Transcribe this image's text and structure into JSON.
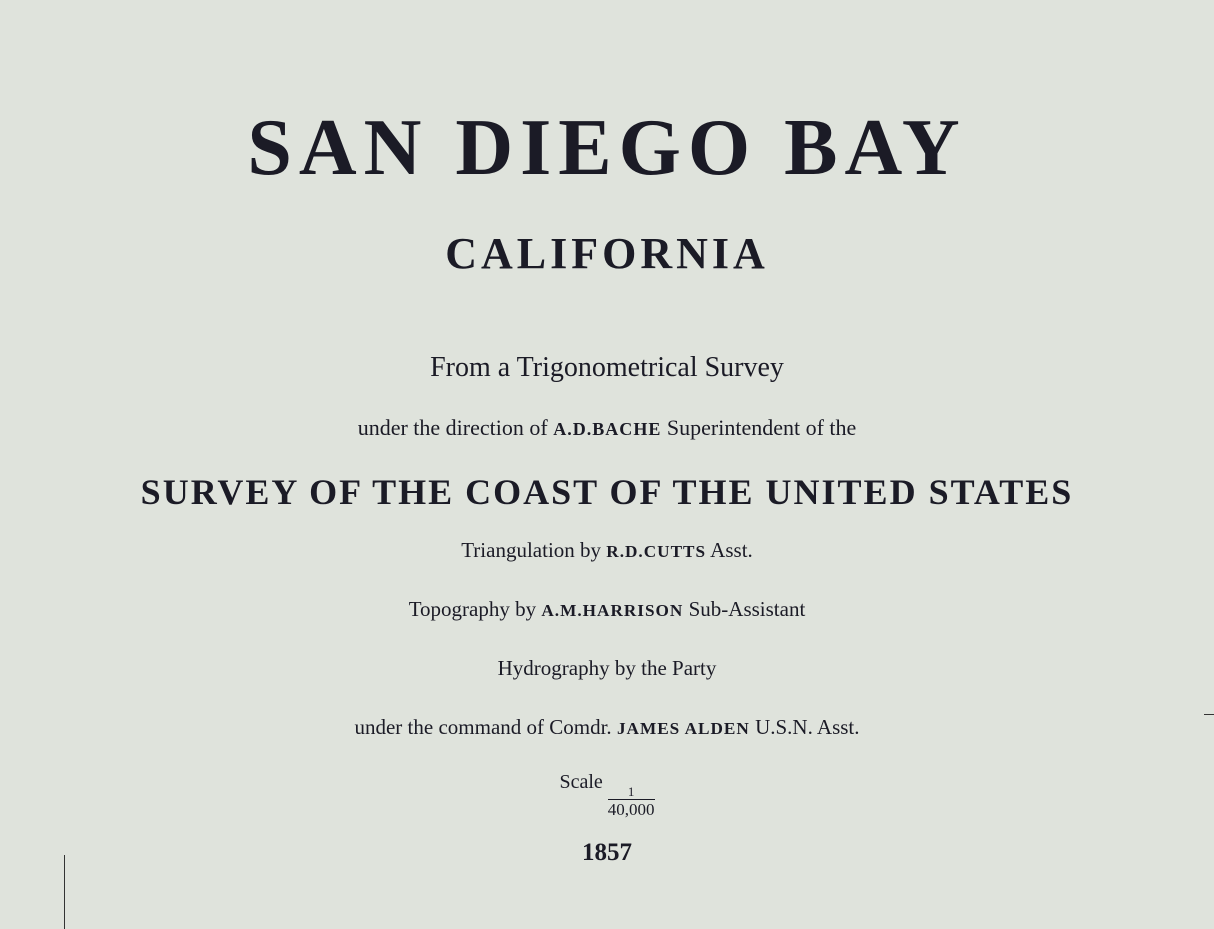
{
  "title": "SAN DIEGO BAY",
  "state": "CALIFORNIA",
  "from_line": "From a Trigonometrical Survey",
  "direction": {
    "pre": "under the direction of ",
    "name": "A.D.BACHE",
    "post": " Superintendent of the"
  },
  "survey": "SURVEY OF THE COAST OF THE UNITED STATES",
  "triangulation": {
    "pre": "Triangulation by ",
    "name": "R.D.CUTTS",
    "post": " Asst."
  },
  "topography": {
    "pre": "Topography by ",
    "name": "A.M.HARRISON",
    "post": " Sub-Assistant"
  },
  "hydrography": "Hydrography by the Party",
  "command": {
    "pre": "under the command of Comdr. ",
    "name": "JAMES ALDEN",
    "post": " U.S.N. Asst."
  },
  "scale": {
    "label": "Scale ",
    "numerator": "1",
    "denominator": "40,000"
  },
  "year": "1857"
}
